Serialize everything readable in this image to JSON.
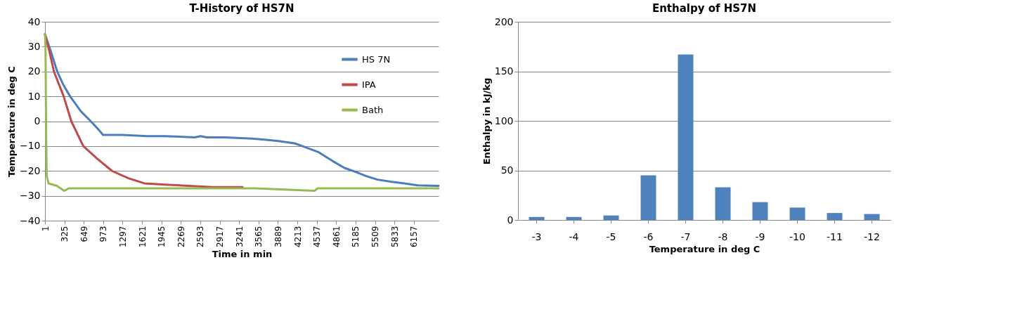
{
  "chart_data": [
    {
      "type": "line",
      "title": "T-History of HS7N",
      "xlabel": "Time in min",
      "ylabel": "Temperature in deg C",
      "xlim": [
        1,
        6570
      ],
      "xticks": [
        1,
        325,
        649,
        973,
        1297,
        1621,
        1945,
        2269,
        2593,
        2917,
        3241,
        3565,
        3889,
        4213,
        4537,
        4861,
        5185,
        5509,
        5833,
        6157
      ],
      "ylim": [
        -40,
        40
      ],
      "yticks": [
        -40,
        -30,
        -20,
        -10,
        0,
        10,
        20,
        30,
        40
      ],
      "grid": "y",
      "legend": "right",
      "line_style": "solid",
      "marker": "none",
      "series": [
        {
          "name": "HS 7N",
          "color": "#4a7ebb",
          "x": [
            1,
            100,
            205,
            300,
            420,
            600,
            765,
            900,
            970,
            1300,
            1700,
            2000,
            2500,
            2600,
            2700,
            3000,
            3460,
            3700,
            3900,
            4170,
            4350,
            4570,
            4800,
            5000,
            5200,
            5355,
            5550,
            5790,
            6000,
            6220,
            6570
          ],
          "values": [
            35,
            28,
            20,
            15,
            10,
            4,
            0,
            -3.5,
            -5.5,
            -5.5,
            -6,
            -6,
            -6.5,
            -6,
            -6.5,
            -6.5,
            -7,
            -7.5,
            -8,
            -8.9,
            -10.5,
            -12.5,
            -16,
            -18.8,
            -20.5,
            -22,
            -23.5,
            -24.4,
            -25,
            -25.8,
            -26
          ]
        },
        {
          "name": "IPA",
          "color": "#be4b48",
          "x": [
            1,
            75,
            150,
            313,
            440,
            640,
            870,
            1120,
            1400,
            1660,
            2000,
            2400,
            2800,
            3300
          ],
          "values": [
            35,
            28,
            20,
            10,
            0,
            -10,
            -15,
            -20,
            -23,
            -25,
            -25.5,
            -26,
            -26.5,
            -26.5
          ]
        },
        {
          "name": "Bath",
          "color": "#98b954",
          "x": [
            1,
            10,
            20,
            30,
            60,
            200,
            320,
            400,
            900,
            1500,
            2500,
            3500,
            4500,
            4550,
            4600,
            5500,
            6570
          ],
          "values": [
            35,
            30,
            -5,
            -22,
            -25,
            -26,
            -28,
            -27,
            -27,
            -27,
            -27,
            -27,
            -28,
            -27,
            -27,
            -27,
            -27
          ]
        }
      ]
    },
    {
      "type": "bar",
      "title": "Enthalpy of HS7N",
      "xlabel": "Temperature in deg C",
      "ylabel": "Enthalpy in kJ/kg",
      "categories": [
        "-3",
        "-4",
        "-5",
        "-6",
        "-7",
        "-8",
        "-9",
        "-10",
        "-11",
        "-12"
      ],
      "values": [
        3,
        3,
        4.5,
        45,
        167,
        33,
        18,
        12.5,
        7,
        6
      ],
      "color": "#4f81bd",
      "ylim": [
        0,
        200
      ],
      "yticks": [
        0,
        50,
        100,
        150,
        200
      ],
      "grid": "y"
    }
  ]
}
